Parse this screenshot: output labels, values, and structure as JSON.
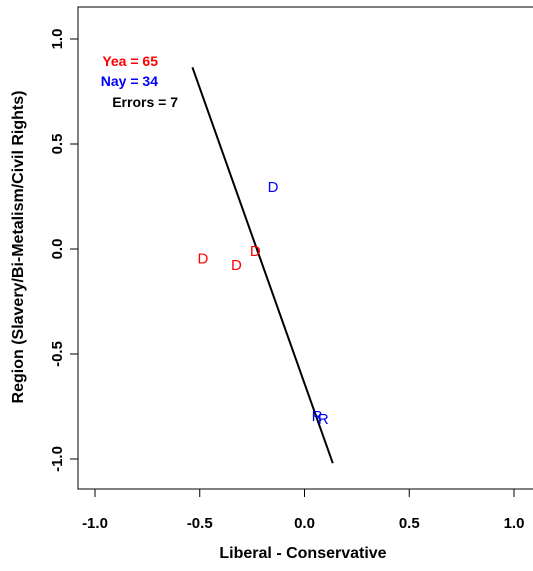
{
  "chart_data": {
    "type": "scatter",
    "title": "",
    "xlabel": "Liberal - Conservative",
    "ylabel": "Region (Slavery/Bi-Metalism/Civil Rights)",
    "xlim": [
      -1.0,
      1.0
    ],
    "ylim": [
      -1.0,
      1.0
    ],
    "x_ticks": [
      "-1.0",
      "-0.5",
      "0.0",
      "0.5",
      "1.0"
    ],
    "y_ticks": [
      "-1.0",
      "-0.5",
      "0.0",
      "0.5",
      "1.0"
    ],
    "grid": false,
    "legend": [
      {
        "label": "Yea = ",
        "count": "65",
        "color": "#ff0000"
      },
      {
        "label": "Nay = ",
        "count": "34",
        "color": "#0000ff"
      },
      {
        "label": "Errors = ",
        "count": "7",
        "color": "#000000"
      }
    ],
    "points": [
      {
        "x": -0.485,
        "y": -0.045,
        "label": "D",
        "color": "#ff0000"
      },
      {
        "x": -0.325,
        "y": -0.075,
        "label": "D",
        "color": "#ff0000"
      },
      {
        "x": -0.235,
        "y": -0.01,
        "label": "D",
        "color": "#ff0000"
      },
      {
        "x": -0.15,
        "y": 0.295,
        "label": "D",
        "color": "#0000ff"
      },
      {
        "x": 0.06,
        "y": -0.795,
        "label": "R",
        "color": "#0000ff"
      },
      {
        "x": 0.09,
        "y": -0.81,
        "label": "R",
        "color": "#0000ff"
      }
    ],
    "cutting_line": {
      "x": [
        -0.535,
        0.135
      ],
      "y": [
        0.865,
        -1.02
      ],
      "color": "#000000"
    }
  }
}
